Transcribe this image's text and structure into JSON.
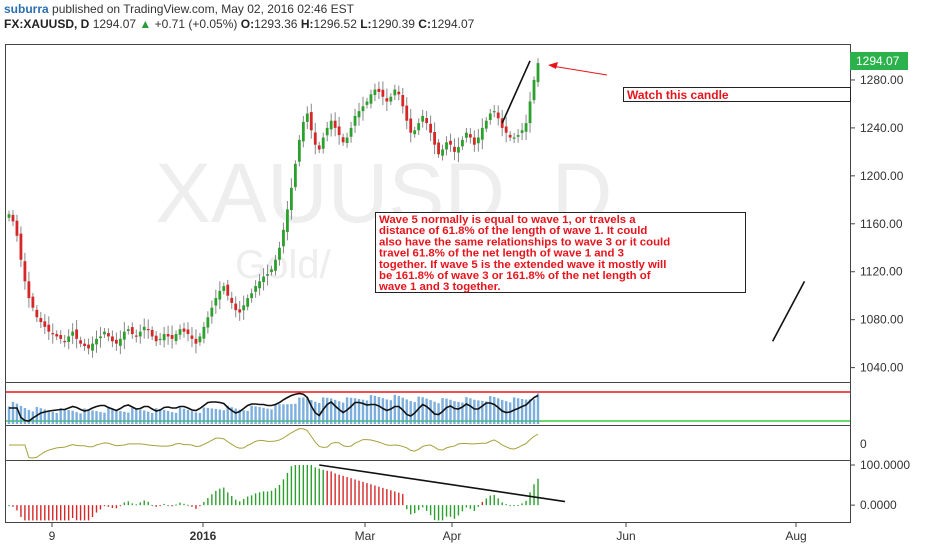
{
  "header": {
    "author": "suburra",
    "published_text": "published on TradingView.com, May 02, 2016 02:46 EST",
    "symbol": "FX:XAUUSD, D",
    "last": "1294.07",
    "change_arrow": "▲",
    "change": "+0.71 (+0.05%)",
    "o_label": "O:",
    "o_value": "1293.36",
    "h_label": "H:",
    "h_value": "1296.52",
    "l_label": "L:",
    "l_value": "1290.39",
    "c_label": "C:",
    "c_value": "1294.07"
  },
  "watermark": {
    "symbol": "XAUUSD, D",
    "name": "Gold/"
  },
  "annotations": {
    "watch_label": "Watch this candle",
    "note_lines": [
      "Wave 5 normally is equal to wave 1, or travels a",
      "distance of 61.8% of the length of wave 1. It could",
      "also have the same relationships to wave 3 or it could",
      "travel 61.8% of the net length of wave 1 and 3",
      "together. If wave 5 is the extended wave it mostly will",
      "be 161.8% of wave 3 or 161.8% of the net length of",
      "wave 1 and 3 together."
    ]
  },
  "chart_data": {
    "type": "candlestick",
    "price_axis": {
      "ticks": [
        "1280.00",
        "1240.00",
        "1200.00",
        "1160.00",
        "1120.00",
        "1080.00",
        "1040.00"
      ],
      "tick_values": [
        1280,
        1240,
        1200,
        1160,
        1120,
        1080,
        1040
      ],
      "range": [
        1028,
        1310
      ],
      "last_price_label": "1294.07"
    },
    "time_axis": {
      "labels": [
        "9",
        "2016",
        "Mar",
        "Apr",
        "Jun",
        "Aug"
      ]
    },
    "indicator2_axis": {
      "ticks": [
        "0"
      ]
    },
    "indicator3_axis": {
      "ticks": [
        "100.0000",
        "0.0000"
      ],
      "tick_values": [
        100,
        0
      ],
      "range": [
        -42,
        110
      ]
    },
    "price_series": [
      1168,
      1162,
      1150,
      1130,
      1112,
      1098,
      1090,
      1082,
      1078,
      1074,
      1070,
      1068,
      1066,
      1064,
      1062,
      1066,
      1070,
      1064,
      1060,
      1058,
      1056,
      1060,
      1064,
      1066,
      1070,
      1066,
      1062,
      1060,
      1064,
      1070,
      1072,
      1068,
      1066,
      1070,
      1074,
      1072,
      1066,
      1062,
      1064,
      1068,
      1066,
      1064,
      1068,
      1072,
      1070,
      1068,
      1064,
      1060,
      1066,
      1074,
      1082,
      1090,
      1098,
      1104,
      1108,
      1100,
      1094,
      1088,
      1086,
      1092,
      1098,
      1102,
      1108,
      1112,
      1116,
      1118,
      1122,
      1130,
      1140,
      1155,
      1172,
      1190,
      1210,
      1230,
      1245,
      1252,
      1238,
      1226,
      1222,
      1232,
      1240,
      1246,
      1240,
      1234,
      1228,
      1232,
      1240,
      1250,
      1254,
      1258,
      1262,
      1268,
      1272,
      1270,
      1266,
      1262,
      1266,
      1272,
      1268,
      1258,
      1246,
      1236,
      1238,
      1244,
      1250,
      1244,
      1236,
      1226,
      1218,
      1222,
      1228,
      1226,
      1220,
      1224,
      1230,
      1236,
      1232,
      1226,
      1232,
      1240,
      1246,
      1252,
      1254,
      1248,
      1240,
      1236,
      1232,
      1232,
      1234,
      1238,
      1244,
      1262,
      1280,
      1294.07
    ],
    "trend_lines": [
      {
        "name": "wave-1",
        "x": [
          192,
          200
        ],
        "y": [
          1062,
          1112
        ]
      },
      {
        "name": "wave-5",
        "x": [
          124,
          131
        ],
        "y": [
          1244,
          1296
        ]
      }
    ],
    "levels_pane1": {
      "upper": "red",
      "lower": "green"
    }
  },
  "colors": {
    "bull": "#2ca02c",
    "bear": "#d62728",
    "wick": "#888888",
    "accent_green": "#2bb24c",
    "annotation_red": "#e8141c",
    "histogram_blue": "#5b9bd5",
    "olive": "#a8a03a"
  }
}
